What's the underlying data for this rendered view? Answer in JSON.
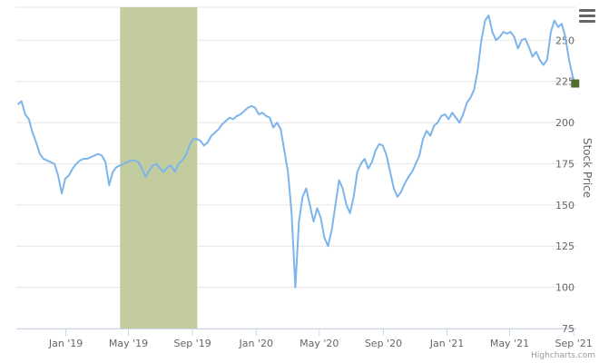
{
  "chart_data": {
    "type": "line",
    "title": "",
    "xlabel": "",
    "ylabel": "Stock Price",
    "ylim": [
      75,
      270
    ],
    "y_ticks": [
      75,
      100,
      125,
      150,
      175,
      200,
      225,
      250
    ],
    "x_ticks": [
      {
        "date": "2019-01-01",
        "label": "Jan '19"
      },
      {
        "date": "2019-05-01",
        "label": "May '19"
      },
      {
        "date": "2019-09-01",
        "label": "Sep '19"
      },
      {
        "date": "2020-01-01",
        "label": "Jan '20"
      },
      {
        "date": "2020-05-01",
        "label": "May '20"
      },
      {
        "date": "2020-09-01",
        "label": "Sep '20"
      },
      {
        "date": "2021-01-01",
        "label": "Jan '21"
      },
      {
        "date": "2021-05-01",
        "label": "May '21"
      },
      {
        "date": "2021-09-01",
        "label": "Sep '21"
      }
    ],
    "xlim": [
      "2018-09-28",
      "2021-09-06"
    ],
    "plot_band": {
      "from": "2019-04-15",
      "to": "2019-09-10",
      "color": "#c2cc9e"
    },
    "series": [
      {
        "color": "#7cb5ec",
        "points": [
          [
            "2018-10-01",
            211
          ],
          [
            "2018-10-08",
            213
          ],
          [
            "2018-10-15",
            205
          ],
          [
            "2018-10-22",
            202
          ],
          [
            "2018-10-29",
            194
          ],
          [
            "2018-11-05",
            188
          ],
          [
            "2018-11-12",
            181
          ],
          [
            "2018-11-19",
            178
          ],
          [
            "2018-11-26",
            177
          ],
          [
            "2018-12-03",
            176
          ],
          [
            "2018-12-10",
            175
          ],
          [
            "2018-12-17",
            168
          ],
          [
            "2018-12-24",
            157
          ],
          [
            "2018-12-31",
            166
          ],
          [
            "2019-01-07",
            168
          ],
          [
            "2019-01-14",
            172
          ],
          [
            "2019-01-21",
            175
          ],
          [
            "2019-01-28",
            177
          ],
          [
            "2019-02-04",
            178
          ],
          [
            "2019-02-11",
            178
          ],
          [
            "2019-02-18",
            179
          ],
          [
            "2019-02-25",
            180
          ],
          [
            "2019-03-04",
            181
          ],
          [
            "2019-03-11",
            180
          ],
          [
            "2019-03-18",
            176
          ],
          [
            "2019-03-25",
            162
          ],
          [
            "2019-04-01",
            170
          ],
          [
            "2019-04-08",
            173
          ],
          [
            "2019-04-15",
            174
          ],
          [
            "2019-04-22",
            175
          ],
          [
            "2019-04-29",
            176
          ],
          [
            "2019-05-06",
            177
          ],
          [
            "2019-05-13",
            177
          ],
          [
            "2019-05-20",
            176
          ],
          [
            "2019-05-27",
            172
          ],
          [
            "2019-06-03",
            167
          ],
          [
            "2019-06-10",
            171
          ],
          [
            "2019-06-17",
            174
          ],
          [
            "2019-06-24",
            175
          ],
          [
            "2019-07-01",
            172
          ],
          [
            "2019-07-08",
            170
          ],
          [
            "2019-07-15",
            173
          ],
          [
            "2019-07-22",
            174
          ],
          [
            "2019-07-29",
            170
          ],
          [
            "2019-08-05",
            175
          ],
          [
            "2019-08-12",
            177
          ],
          [
            "2019-08-19",
            180
          ],
          [
            "2019-08-26",
            186
          ],
          [
            "2019-09-02",
            190
          ],
          [
            "2019-09-09",
            190
          ],
          [
            "2019-09-16",
            189
          ],
          [
            "2019-09-23",
            186
          ],
          [
            "2019-09-30",
            188
          ],
          [
            "2019-10-07",
            192
          ],
          [
            "2019-10-14",
            194
          ],
          [
            "2019-10-21",
            196
          ],
          [
            "2019-10-28",
            199
          ],
          [
            "2019-11-04",
            201
          ],
          [
            "2019-11-11",
            203
          ],
          [
            "2019-11-18",
            202
          ],
          [
            "2019-11-25",
            204
          ],
          [
            "2019-12-02",
            205
          ],
          [
            "2019-12-09",
            207
          ],
          [
            "2019-12-16",
            209
          ],
          [
            "2019-12-23",
            210
          ],
          [
            "2019-12-30",
            209
          ],
          [
            "2020-01-06",
            205
          ],
          [
            "2020-01-13",
            206
          ],
          [
            "2020-01-20",
            204
          ],
          [
            "2020-01-27",
            203
          ],
          [
            "2020-02-03",
            197
          ],
          [
            "2020-02-10",
            200
          ],
          [
            "2020-02-17",
            196
          ],
          [
            "2020-02-24",
            183
          ],
          [
            "2020-03-02",
            170
          ],
          [
            "2020-03-09",
            145
          ],
          [
            "2020-03-16",
            100
          ],
          [
            "2020-03-23",
            140
          ],
          [
            "2020-03-30",
            155
          ],
          [
            "2020-04-06",
            160
          ],
          [
            "2020-04-13",
            150
          ],
          [
            "2020-04-20",
            140
          ],
          [
            "2020-04-27",
            148
          ],
          [
            "2020-05-04",
            142
          ],
          [
            "2020-05-11",
            130
          ],
          [
            "2020-05-18",
            125
          ],
          [
            "2020-05-25",
            135
          ],
          [
            "2020-06-01",
            150
          ],
          [
            "2020-06-08",
            165
          ],
          [
            "2020-06-15",
            160
          ],
          [
            "2020-06-22",
            150
          ],
          [
            "2020-06-29",
            145
          ],
          [
            "2020-07-06",
            155
          ],
          [
            "2020-07-13",
            170
          ],
          [
            "2020-07-20",
            175
          ],
          [
            "2020-07-27",
            178
          ],
          [
            "2020-08-03",
            172
          ],
          [
            "2020-08-10",
            176
          ],
          [
            "2020-08-17",
            183
          ],
          [
            "2020-08-24",
            187
          ],
          [
            "2020-08-31",
            186
          ],
          [
            "2020-09-07",
            180
          ],
          [
            "2020-09-14",
            170
          ],
          [
            "2020-09-21",
            160
          ],
          [
            "2020-09-28",
            155
          ],
          [
            "2020-10-05",
            158
          ],
          [
            "2020-10-12",
            163
          ],
          [
            "2020-10-19",
            167
          ],
          [
            "2020-10-26",
            170
          ],
          [
            "2020-11-02",
            175
          ],
          [
            "2020-11-09",
            180
          ],
          [
            "2020-11-16",
            190
          ],
          [
            "2020-11-23",
            195
          ],
          [
            "2020-11-30",
            192
          ],
          [
            "2020-12-07",
            198
          ],
          [
            "2020-12-14",
            200
          ],
          [
            "2020-12-21",
            204
          ],
          [
            "2020-12-28",
            205
          ],
          [
            "2021-01-04",
            202
          ],
          [
            "2021-01-11",
            206
          ],
          [
            "2021-01-18",
            203
          ],
          [
            "2021-01-25",
            200
          ],
          [
            "2021-02-01",
            205
          ],
          [
            "2021-02-08",
            212
          ],
          [
            "2021-02-15",
            215
          ],
          [
            "2021-02-22",
            220
          ],
          [
            "2021-03-01",
            232
          ],
          [
            "2021-03-08",
            250
          ],
          [
            "2021-03-15",
            262
          ],
          [
            "2021-03-22",
            265
          ],
          [
            "2021-03-29",
            255
          ],
          [
            "2021-04-05",
            250
          ],
          [
            "2021-04-12",
            252
          ],
          [
            "2021-04-19",
            255
          ],
          [
            "2021-04-26",
            254
          ],
          [
            "2021-05-03",
            255
          ],
          [
            "2021-05-10",
            252
          ],
          [
            "2021-05-17",
            245
          ],
          [
            "2021-05-24",
            250
          ],
          [
            "2021-05-31",
            251
          ],
          [
            "2021-06-07",
            246
          ],
          [
            "2021-06-14",
            240
          ],
          [
            "2021-06-21",
            243
          ],
          [
            "2021-06-28",
            238
          ],
          [
            "2021-07-05",
            235
          ],
          [
            "2021-07-12",
            238
          ],
          [
            "2021-07-19",
            255
          ],
          [
            "2021-07-26",
            262
          ],
          [
            "2021-08-02",
            258
          ],
          [
            "2021-08-09",
            260
          ],
          [
            "2021-08-16",
            252
          ],
          [
            "2021-08-23",
            238
          ],
          [
            "2021-08-30",
            228
          ],
          [
            "2021-09-03",
            224
          ]
        ]
      }
    ],
    "last_marker_color": "#556b2f"
  },
  "credits": "Highcharts.com",
  "icons": {
    "menu": "hamburger-menu-icon"
  }
}
